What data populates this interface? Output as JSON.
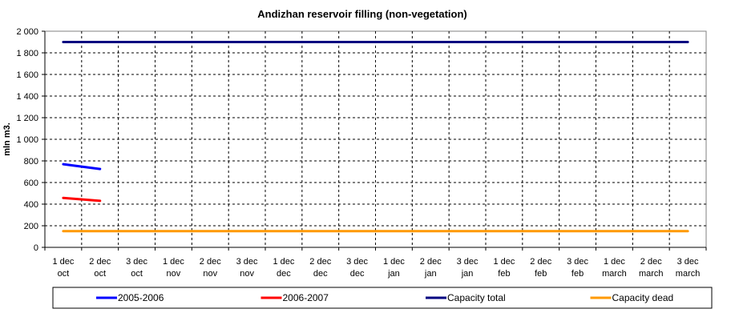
{
  "chart_data": {
    "type": "line",
    "title": "Andizhan reservoir filling  (non-vegetation)",
    "ylabel": "mln m3.",
    "xlabel": "",
    "ylim": [
      0,
      2000
    ],
    "yticks": [
      0,
      200,
      400,
      600,
      800,
      1000,
      1200,
      1400,
      1600,
      1800,
      2000
    ],
    "ytick_labels": [
      "0",
      "200",
      "400",
      "600",
      "800",
      "1 000",
      "1 200",
      "1 400",
      "1 600",
      "1 800",
      "2 000"
    ],
    "grid": true,
    "legend_position": "bottom",
    "categories": [
      [
        "1 dec",
        "oct"
      ],
      [
        "2 dec",
        "oct"
      ],
      [
        "3 dec",
        "oct"
      ],
      [
        "1 dec",
        "nov"
      ],
      [
        "2 dec",
        "nov"
      ],
      [
        "3 dec",
        "nov"
      ],
      [
        "1 dec",
        "dec"
      ],
      [
        "2 dec",
        "dec"
      ],
      [
        "3 dec",
        "dec"
      ],
      [
        "1 dec",
        "jan"
      ],
      [
        "2 dec",
        "jan"
      ],
      [
        "3 dec",
        "jan"
      ],
      [
        "1 dec",
        "feb"
      ],
      [
        "2 dec",
        "feb"
      ],
      [
        "3 dec",
        "feb"
      ],
      [
        "1 dec",
        "march"
      ],
      [
        "2 dec",
        "march"
      ],
      [
        "3 dec",
        "march"
      ]
    ],
    "series": [
      {
        "name": "2005-2006",
        "color": "#0000ff",
        "values": [
          770,
          725,
          null,
          null,
          null,
          null,
          null,
          null,
          null,
          null,
          null,
          null,
          null,
          null,
          null,
          null,
          null,
          null
        ]
      },
      {
        "name": "2006-2007",
        "color": "#ff0000",
        "values": [
          458,
          430,
          null,
          null,
          null,
          null,
          null,
          null,
          null,
          null,
          null,
          null,
          null,
          null,
          null,
          null,
          null,
          null
        ]
      },
      {
        "name": "Capacity total",
        "color": "#000080",
        "values": [
          1900,
          1900,
          1900,
          1900,
          1900,
          1900,
          1900,
          1900,
          1900,
          1900,
          1900,
          1900,
          1900,
          1900,
          1900,
          1900,
          1900,
          1900
        ]
      },
      {
        "name": "Capacity dead",
        "color": "#ff9900",
        "values": [
          150,
          150,
          150,
          150,
          150,
          150,
          150,
          150,
          150,
          150,
          150,
          150,
          150,
          150,
          150,
          150,
          150,
          150
        ]
      }
    ]
  }
}
